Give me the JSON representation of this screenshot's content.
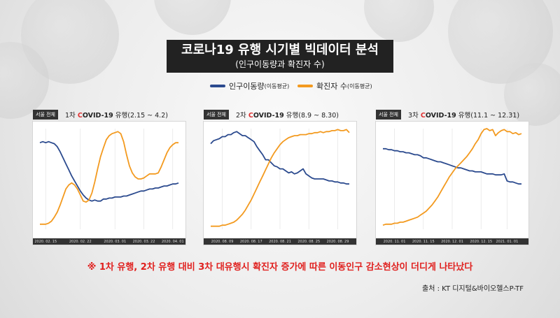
{
  "title": "코로나19 유행 시기별 빅데이터 분석",
  "subtitle": "(인구이동량과 확진자 수)",
  "colors": {
    "mobility": "#2b4a8e",
    "cases": "#f39a1f",
    "accent": "#e0201e"
  },
  "legend": {
    "mobility": "인구이동량",
    "mobility_note": "(이동평균)",
    "cases": "확진자 수",
    "cases_note": "(이동평균)"
  },
  "panels": [
    {
      "tag": "서울 전체",
      "wave": "1차",
      "covid_c": "C",
      "covid_rest": "OVID-19",
      "wave_suffix": "유행",
      "period": "(2.15 ~ 4.2)"
    },
    {
      "tag": "서울 전체",
      "wave": "2차",
      "covid_c": "C",
      "covid_rest": "OVID-19",
      "wave_suffix": "유행",
      "period": "(8.9 ~ 8.30)"
    },
    {
      "tag": "서울 전체",
      "wave": "3차",
      "covid_c": "C",
      "covid_rest": "OVID-19",
      "wave_suffix": "유행",
      "period": "(11.1 ~ 12.31)"
    }
  ],
  "chart_data": [
    {
      "type": "line",
      "x": [
        0,
        1,
        2,
        3,
        4,
        5,
        6,
        7,
        8,
        9,
        10,
        11,
        12,
        13,
        14,
        15,
        16,
        17,
        18,
        19,
        20,
        21,
        22,
        23,
        24,
        25,
        26,
        27,
        28,
        29,
        30,
        31,
        32,
        33,
        34,
        35,
        36,
        37,
        38,
        39,
        40,
        41,
        42,
        43,
        44,
        45,
        46,
        47,
        48
      ],
      "xticks": [
        {
          "i": 2,
          "label": "2020. 02. 15"
        },
        {
          "i": 14,
          "label": "2020. 02. 22"
        },
        {
          "i": 26,
          "label": "2020. 03. 01"
        },
        {
          "i": 36,
          "label": "2020. 03. 22"
        },
        {
          "i": 46,
          "label": "2020. 04. 01"
        }
      ],
      "ylim": [
        0,
        100
      ],
      "series": [
        {
          "key": "mobility",
          "values": [
            86,
            87,
            86,
            87,
            86,
            85,
            82,
            77,
            71,
            65,
            59,
            53,
            48,
            43,
            38,
            34,
            31,
            29,
            28,
            29,
            28,
            28,
            30,
            30,
            31,
            31,
            32,
            32,
            32,
            33,
            33,
            34,
            35,
            36,
            37,
            38,
            38,
            39,
            40,
            40,
            41,
            41,
            42,
            43,
            43,
            44,
            45,
            45,
            46
          ]
        },
        {
          "key": "cases",
          "values": [
            5,
            5,
            5,
            6,
            8,
            12,
            17,
            24,
            32,
            40,
            44,
            46,
            44,
            40,
            34,
            28,
            27,
            29,
            36,
            47,
            60,
            72,
            81,
            89,
            93,
            95,
            96,
            97,
            95,
            87,
            74,
            63,
            56,
            52,
            50,
            50,
            51,
            53,
            55,
            55,
            55,
            56,
            62,
            69,
            76,
            81,
            84,
            86,
            86
          ]
        }
      ]
    },
    {
      "type": "line",
      "x": [
        0,
        1,
        2,
        3,
        4,
        5,
        6,
        7,
        8,
        9,
        10,
        11,
        12,
        13,
        14,
        15,
        16,
        17,
        18,
        19,
        20,
        21,
        22,
        23,
        24,
        25,
        26,
        27,
        28,
        29,
        30,
        31,
        32,
        33,
        34,
        35,
        36,
        37,
        38,
        39,
        40,
        41,
        42,
        43,
        44,
        45,
        46,
        47,
        48
      ],
      "xticks": [
        {
          "i": 4,
          "label": "2020. 08. 09"
        },
        {
          "i": 14,
          "label": "2020. 08. 17"
        },
        {
          "i": 24,
          "label": "2020. 08. 21"
        },
        {
          "i": 34,
          "label": "2020. 08. 25"
        },
        {
          "i": 44,
          "label": "2020. 08. 29"
        }
      ],
      "ylim": [
        0,
        100
      ],
      "series": [
        {
          "key": "mobility",
          "values": [
            85,
            88,
            89,
            90,
            92,
            92,
            94,
            94,
            96,
            97,
            95,
            93,
            93,
            91,
            89,
            87,
            82,
            78,
            74,
            69,
            69,
            66,
            63,
            62,
            60,
            60,
            58,
            56,
            57,
            55,
            56,
            58,
            60,
            55,
            53,
            51,
            50,
            50,
            50,
            50,
            49,
            48,
            48,
            47,
            47,
            46,
            46,
            45,
            45
          ]
        },
        {
          "key": "cases",
          "values": [
            3,
            3,
            3,
            3,
            4,
            4,
            5,
            6,
            7,
            9,
            12,
            15,
            19,
            24,
            29,
            35,
            41,
            47,
            53,
            59,
            65,
            71,
            76,
            80,
            84,
            87,
            89,
            91,
            92,
            93,
            93,
            94,
            94,
            94,
            95,
            95,
            96,
            96,
            97,
            96,
            97,
            97,
            98,
            98,
            99,
            98,
            98,
            99,
            96
          ]
        }
      ]
    },
    {
      "type": "line",
      "x": [
        0,
        1,
        2,
        3,
        4,
        5,
        6,
        7,
        8,
        9,
        10,
        11,
        12,
        13,
        14,
        15,
        16,
        17,
        18,
        19,
        20,
        21,
        22,
        23,
        24,
        25,
        26,
        27,
        28,
        29,
        30,
        31,
        32,
        33,
        34,
        35,
        36,
        37,
        38,
        39,
        40,
        41,
        42,
        43,
        44,
        45,
        46,
        47,
        48
      ],
      "xticks": [
        {
          "i": 4,
          "label": "2020. 11. 01"
        },
        {
          "i": 14,
          "label": "2020. 11. 15"
        },
        {
          "i": 24,
          "label": "2020. 12. 01"
        },
        {
          "i": 34,
          "label": "2020. 12. 15"
        },
        {
          "i": 43,
          "label": "2021. 01. 01"
        }
      ],
      "ylim": [
        0,
        100
      ],
      "series": [
        {
          "key": "mobility",
          "values": [
            80,
            80,
            79,
            79,
            78,
            78,
            77,
            77,
            76,
            76,
            75,
            74,
            74,
            73,
            71,
            71,
            70,
            69,
            68,
            67,
            67,
            66,
            65,
            64,
            63,
            62,
            61,
            61,
            60,
            59,
            58,
            58,
            57,
            57,
            57,
            56,
            55,
            55,
            55,
            54,
            54,
            54,
            55,
            48,
            47,
            47,
            46,
            45,
            45
          ]
        },
        {
          "key": "cases",
          "values": [
            4,
            5,
            5,
            5,
            6,
            6,
            7,
            7,
            8,
            9,
            10,
            11,
            12,
            14,
            16,
            18,
            21,
            24,
            28,
            32,
            37,
            42,
            47,
            52,
            56,
            60,
            63,
            66,
            69,
            72,
            76,
            80,
            85,
            89,
            95,
            99,
            100,
            98,
            99,
            93,
            96,
            98,
            99,
            97,
            97,
            95,
            96,
            94,
            95
          ]
        }
      ]
    }
  ],
  "note": "※ 1차 유행, 2차 유행 대비 3차 대유행시 확진자 증가에 따른 이동인구 감소현상이 더디게 나타났다",
  "source": "출처 : KT 디지털&바이오헬스P-TF"
}
